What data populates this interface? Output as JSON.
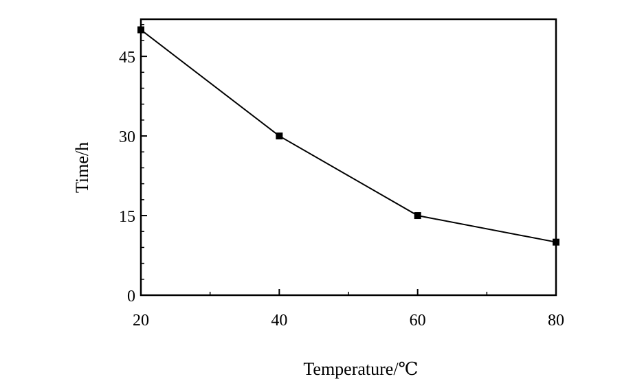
{
  "chart_data": {
    "type": "line",
    "title": "",
    "xlabel": "Temperature/℃",
    "ylabel": "Time/h",
    "xlim": [
      20,
      80
    ],
    "ylim": [
      0,
      52
    ],
    "x_ticks": [
      20,
      40,
      60,
      80
    ],
    "y_ticks": [
      0,
      15,
      30,
      45
    ],
    "grid": false,
    "legend": "none",
    "marker": "square",
    "color": "#000000",
    "series": [
      {
        "x": [
          20,
          40,
          60,
          80
        ],
        "values": [
          50,
          30,
          15,
          10
        ]
      }
    ]
  }
}
